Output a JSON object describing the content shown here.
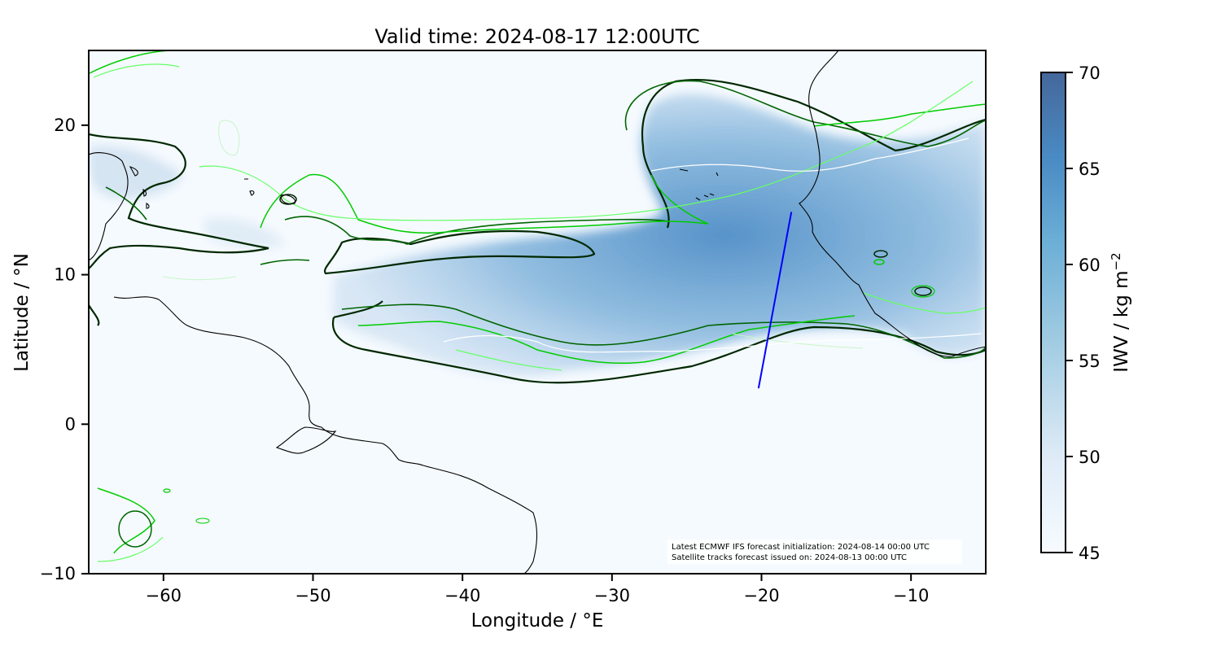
{
  "title": "Valid time: 2024-08-17 12:00UTC",
  "map": {
    "xlabel": "Longitude / °E",
    "ylabel": "Latitude / °N",
    "lon_range": [
      -65,
      -5
    ],
    "lat_range": [
      -10,
      25
    ],
    "x_ticks": [
      -60,
      -50,
      -40,
      -30,
      -20,
      -10
    ],
    "y_ticks": [
      -10,
      0,
      10,
      20
    ],
    "x_tick_labels": [
      "−60",
      "−50",
      "−40",
      "−30",
      "−20",
      "−10"
    ],
    "y_tick_labels": [
      "−10",
      "0",
      "10",
      "20"
    ],
    "background_color": "#f5fafe",
    "field": "IWV",
    "satellite_track": {
      "color": "#0000ff",
      "start": {
        "lon": -20.2,
        "lat": 2.4
      },
      "end": {
        "lon": -18.0,
        "lat": 14.2
      }
    },
    "contour_colors": [
      "#003300",
      "#006400",
      "#00cc00",
      "#66ff66",
      "#ccffcc"
    ]
  },
  "colorbar": {
    "label": "IWV / kg m",
    "label_sup": "−2",
    "min": 45,
    "max": 70,
    "ticks": [
      45,
      50,
      55,
      60,
      65,
      70
    ],
    "tick_labels": [
      "45",
      "50",
      "55",
      "60",
      "65",
      "70"
    ],
    "colors": [
      "#f7fbff",
      "#c6dbef",
      "#6baed6",
      "#4682b4",
      "#44679a"
    ]
  },
  "annotation": {
    "line1": "Latest ECMWF IFS forecast initialization: 2024-08-14 00:00 UTC",
    "line2": "Satellite tracks forecast issued on: 2024-08-13 00:00 UTC"
  }
}
